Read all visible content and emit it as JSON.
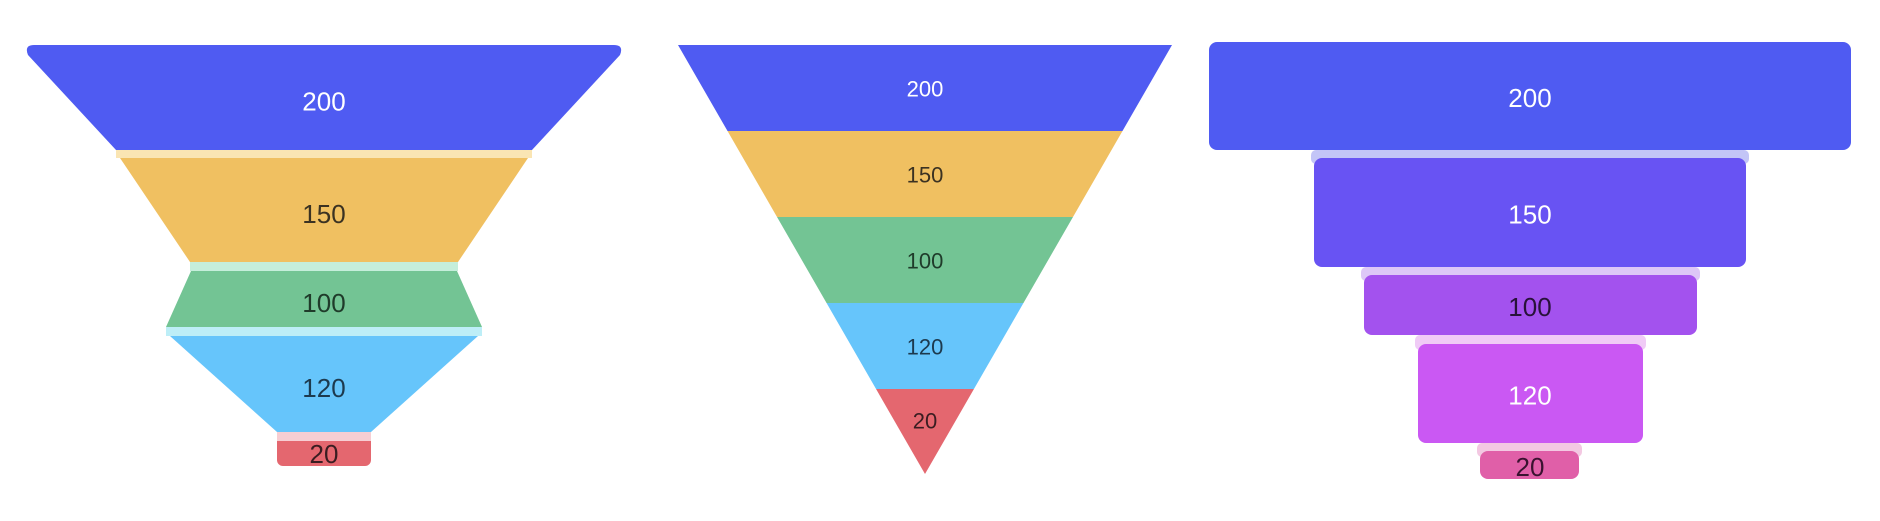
{
  "chart_data": [
    {
      "type": "funnel",
      "style": "trapezoid-funnel-with-separators",
      "values": [
        200,
        150,
        100,
        120,
        20
      ],
      "labels": [
        "200",
        "150",
        "100",
        "120",
        "20"
      ],
      "colors": [
        "#4f5bf2",
        "#f0c061",
        "#73c494",
        "#66c5fb",
        "#e4676f"
      ],
      "separator_colors": [
        "#fae5b3",
        "#c5eedb",
        "#bdeef7",
        "#f7ced3"
      ],
      "text_colors": [
        "#ffffff",
        "#3b3222",
        "#1f3b2a",
        "#1d3a4e",
        "#3a1d21"
      ]
    },
    {
      "type": "funnel",
      "style": "inverted-triangle",
      "values": [
        200,
        150,
        100,
        120,
        20
      ],
      "labels": [
        "200",
        "150",
        "100",
        "120",
        "20"
      ],
      "colors": [
        "#4f5bf2",
        "#f0c061",
        "#73c494",
        "#66c5fb",
        "#e4676f"
      ],
      "text_colors": [
        "#ffffff",
        "#3b3222",
        "#1f3b2a",
        "#1d3a4e",
        "#3a1d21"
      ]
    },
    {
      "type": "funnel",
      "style": "stepped-rectangles",
      "values": [
        200,
        150,
        100,
        120,
        20
      ],
      "labels": [
        "200",
        "150",
        "100",
        "120",
        "20"
      ],
      "colors": [
        "#4f5bf2",
        "#6853f3",
        "#a352ee",
        "#ca58f3",
        "#e05fa8"
      ],
      "separator_colors": [
        "#c3c5f7",
        "#ddc7f7",
        "#f0cbf6",
        "#f3c8e2"
      ],
      "text_colors": [
        "#ffffff",
        "#ffffff",
        "#28123a",
        "#ffffff",
        "#3a1230"
      ]
    }
  ]
}
